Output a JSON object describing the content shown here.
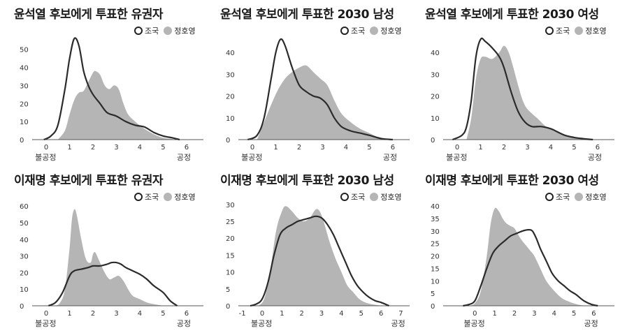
{
  "legend": {
    "outline": "조국",
    "fill": "정호영"
  },
  "colors": {
    "fill": "#b5b5b5",
    "line": "#2b2b2b",
    "axis": "#555555"
  },
  "chart_data": [
    {
      "type": "area",
      "title": "윤석열 후보에게 투표한 유권자",
      "x_min_label": "불공정",
      "x_max_label": "공정",
      "xticks": [
        0,
        1,
        2,
        3,
        4,
        5,
        6
      ],
      "yticks": [
        0,
        10,
        20,
        30,
        40,
        50
      ],
      "xlim": [
        -0.6,
        6.6
      ],
      "ylim": [
        0,
        58
      ],
      "series": [
        {
          "name": "정호영",
          "style": "fill",
          "x": [
            0.5,
            0.8,
            1.0,
            1.2,
            1.4,
            1.6,
            1.8,
            2.0,
            2.1,
            2.3,
            2.5,
            2.7,
            2.9,
            3.1,
            3.3,
            3.5,
            3.8,
            4.2,
            4.6,
            5.0,
            5.4,
            5.6
          ],
          "y": [
            0,
            5,
            14,
            22,
            26,
            27,
            32,
            37,
            38,
            36,
            30,
            28,
            30,
            28,
            20,
            14,
            10,
            6,
            3,
            1,
            0.3,
            0
          ]
        },
        {
          "name": "조국",
          "style": "outline",
          "x": [
            -0.1,
            0.2,
            0.5,
            0.8,
            1.0,
            1.2,
            1.4,
            1.6,
            1.8,
            2.0,
            2.3,
            2.6,
            3.0,
            3.4,
            3.8,
            4.2,
            4.6,
            5.0,
            5.4,
            5.7
          ],
          "y": [
            0,
            2,
            8,
            28,
            45,
            56,
            52,
            38,
            30,
            25,
            20,
            15,
            13,
            10,
            8,
            7,
            4,
            2,
            1,
            0
          ]
        }
      ]
    },
    {
      "type": "area",
      "title": "윤석열 후보에게 투표한 2030 남성",
      "x_min_label": "불공정",
      "x_max_label": "공정",
      "xticks": [
        0,
        1,
        2,
        3,
        4,
        5,
        6
      ],
      "yticks": [
        0,
        10,
        20,
        30,
        40
      ],
      "xlim": [
        -0.6,
        6.6
      ],
      "ylim": [
        0,
        48
      ],
      "series": [
        {
          "name": "정호영",
          "style": "fill",
          "x": [
            0.2,
            0.5,
            0.8,
            1.1,
            1.4,
            1.7,
            2.0,
            2.3,
            2.6,
            2.9,
            3.2,
            3.5,
            3.8,
            4.2,
            4.6,
            5.0,
            5.4,
            5.8
          ],
          "y": [
            0,
            8,
            16,
            23,
            28,
            31,
            33,
            34,
            31,
            28,
            25,
            18,
            12,
            8,
            5,
            3,
            1,
            0
          ]
        },
        {
          "name": "조국",
          "style": "outline",
          "x": [
            -0.2,
            0.2,
            0.5,
            0.8,
            1.0,
            1.2,
            1.4,
            1.7,
            2.0,
            2.3,
            2.6,
            2.9,
            3.2,
            3.5,
            3.8,
            4.2,
            4.6,
            5.0,
            5.5,
            6.0
          ],
          "y": [
            0,
            2,
            10,
            28,
            40,
            46,
            43,
            33,
            25,
            22,
            20,
            19,
            16,
            10,
            6,
            4,
            3,
            2,
            0.5,
            0
          ]
        }
      ]
    },
    {
      "type": "area",
      "title": "윤석열 후보에게 투표한 2030 여성",
      "x_min_label": "불공정",
      "x_max_label": "공정",
      "xticks": [
        0,
        1,
        2,
        3,
        4,
        5,
        6
      ],
      "yticks": [
        0,
        10,
        20,
        30,
        40
      ],
      "xlim": [
        -0.6,
        6.6
      ],
      "ylim": [
        0,
        48
      ],
      "series": [
        {
          "name": "정호영",
          "style": "fill",
          "x": [
            0.4,
            0.6,
            0.8,
            1.0,
            1.2,
            1.5,
            1.8,
            2.0,
            2.2,
            2.4,
            2.6,
            2.8,
            3.0,
            3.4,
            3.8,
            4.2,
            4.6,
            5.0,
            5.4
          ],
          "y": [
            0,
            10,
            28,
            37,
            38,
            37,
            40,
            43,
            40,
            33,
            25,
            18,
            14,
            10,
            6,
            4,
            2,
            1,
            0
          ]
        },
        {
          "name": "조국",
          "style": "outline",
          "x": [
            -0.2,
            0.2,
            0.4,
            0.6,
            0.8,
            1.0,
            1.2,
            1.5,
            1.8,
            2.0,
            2.3,
            2.6,
            2.9,
            3.2,
            3.6,
            4.0,
            4.2,
            4.6,
            5.0,
            5.5,
            5.8
          ],
          "y": [
            0,
            2,
            6,
            18,
            38,
            46,
            45,
            42,
            38,
            33,
            22,
            13,
            8,
            6,
            6,
            5,
            4,
            2,
            1,
            0.3,
            0
          ]
        }
      ]
    },
    {
      "type": "area",
      "title": "이재명 후보에게 투표한 유권자",
      "x_min_label": "불공정",
      "x_max_label": "공정",
      "xticks": [
        0,
        1,
        2,
        3,
        4,
        5,
        6
      ],
      "yticks": [
        0,
        10,
        20,
        30,
        40,
        50,
        60
      ],
      "xlim": [
        -0.6,
        6.6
      ],
      "ylim": [
        0,
        63
      ],
      "series": [
        {
          "name": "정호영",
          "style": "fill",
          "x": [
            0.4,
            0.6,
            0.8,
            1.0,
            1.1,
            1.2,
            1.3,
            1.5,
            1.7,
            1.9,
            2.0,
            2.1,
            2.3,
            2.5,
            2.7,
            2.9,
            3.1,
            3.3,
            3.5,
            3.7,
            4.0,
            4.3,
            4.6,
            5.0
          ],
          "y": [
            0,
            2,
            10,
            35,
            52,
            58,
            55,
            40,
            28,
            26,
            31,
            32,
            26,
            20,
            16,
            17,
            18,
            15,
            10,
            6,
            4,
            2,
            1,
            0
          ]
        },
        {
          "name": "조국",
          "style": "outline",
          "x": [
            0.1,
            0.4,
            0.7,
            1.0,
            1.2,
            1.5,
            1.8,
            2.0,
            2.3,
            2.6,
            2.8,
            3.0,
            3.2,
            3.4,
            3.7,
            4.0,
            4.3,
            4.6,
            5.0,
            5.3,
            5.6
          ],
          "y": [
            0,
            2,
            8,
            18,
            21,
            22,
            23,
            24,
            24,
            25,
            26,
            26,
            25,
            23,
            21,
            19,
            16,
            12,
            8,
            3,
            0
          ]
        }
      ]
    },
    {
      "type": "area",
      "title": "이재명 후보에게 투표한 2030 남성",
      "x_min_label": "불공정",
      "x_max_label": "공정",
      "xticks": [
        -1,
        0,
        1,
        2,
        3,
        4,
        5,
        6,
        7
      ],
      "yticks": [
        0,
        5,
        10,
        15,
        20,
        25,
        30
      ],
      "xlim": [
        -1.2,
        7.3
      ],
      "ylim": [
        0,
        31
      ],
      "series": [
        {
          "name": "정호영",
          "style": "fill",
          "x": [
            -0.2,
            0.1,
            0.4,
            0.7,
            1.0,
            1.2,
            1.5,
            1.8,
            2.1,
            2.4,
            2.7,
            2.9,
            3.1,
            3.4,
            3.7,
            4.0,
            4.3,
            4.6,
            4.9,
            5.2,
            5.5,
            5.8,
            6.1
          ],
          "y": [
            0,
            2,
            10,
            22,
            28,
            29.5,
            28,
            26,
            25,
            26,
            28.5,
            28,
            25,
            19,
            14,
            10,
            6,
            4,
            2,
            1,
            0.5,
            0.2,
            0
          ]
        },
        {
          "name": "조국",
          "style": "outline",
          "x": [
            -0.6,
            -0.3,
            0.0,
            0.3,
            0.6,
            0.9,
            1.2,
            1.5,
            1.8,
            2.1,
            2.4,
            2.7,
            3.0,
            3.3,
            3.6,
            3.9,
            4.2,
            4.5,
            4.8,
            5.1,
            5.4,
            5.7,
            6.0,
            6.4
          ],
          "y": [
            0,
            0.5,
            2,
            7,
            15,
            21,
            23,
            24,
            25,
            25.5,
            26,
            26.5,
            26,
            24,
            21,
            17,
            13,
            9,
            6,
            4,
            2.5,
            1.5,
            1,
            0
          ]
        }
      ]
    },
    {
      "type": "area",
      "title": "이재명 후보에게 투표한 2030 여성",
      "x_min_label": "불공정",
      "x_max_label": "공정",
      "xticks": [
        0,
        1,
        2,
        3,
        4,
        5,
        6
      ],
      "yticks": [
        0,
        5,
        10,
        15,
        20,
        25,
        30,
        35,
        40
      ],
      "xlim": [
        -1.6,
        6.9
      ],
      "ylim": [
        0,
        42
      ],
      "series": [
        {
          "name": "정호영",
          "style": "fill",
          "x": [
            -0.3,
            0.0,
            0.3,
            0.6,
            0.8,
            1.0,
            1.2,
            1.4,
            1.6,
            1.8,
            2.0,
            2.3,
            2.6,
            2.8,
            3.0,
            3.3,
            3.6,
            4.0,
            4.4,
            4.8,
            5.2,
            5.6
          ],
          "y": [
            0,
            1,
            6,
            20,
            33,
            39,
            38,
            35,
            33,
            32,
            31,
            27,
            24,
            22,
            20,
            15,
            10,
            6,
            3,
            1.5,
            0.5,
            0
          ]
        },
        {
          "name": "조국",
          "style": "outline",
          "x": [
            -0.6,
            -0.3,
            0.0,
            0.3,
            0.6,
            0.9,
            1.2,
            1.5,
            1.8,
            2.1,
            2.4,
            2.7,
            2.9,
            3.1,
            3.3,
            3.6,
            3.9,
            4.2,
            4.5,
            4.8,
            5.1,
            5.5,
            5.9,
            6.2
          ],
          "y": [
            0,
            0.5,
            2,
            8,
            15,
            21,
            24,
            26,
            28,
            29,
            30,
            30.5,
            30,
            27,
            23,
            18,
            13,
            10,
            8,
            6,
            4.5,
            2,
            0.5,
            0
          ]
        }
      ]
    }
  ]
}
